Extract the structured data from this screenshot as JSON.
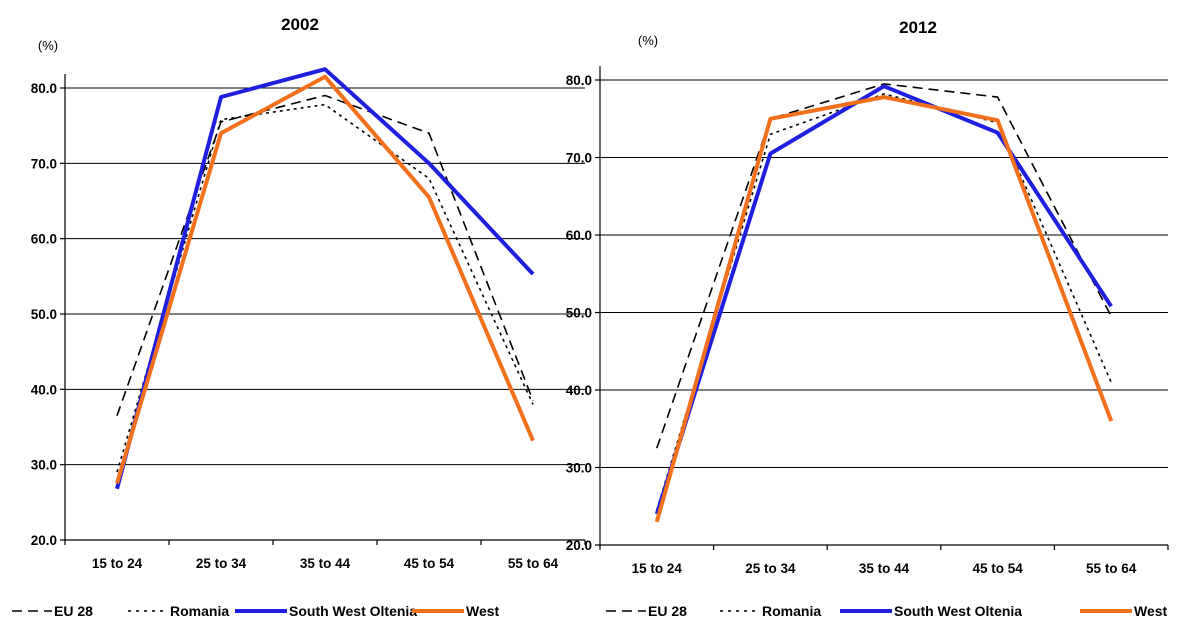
{
  "chart_data": [
    {
      "type": "line",
      "title": "2002",
      "ylabel": "(%)",
      "xlabel": "",
      "categories": [
        "15 to 24",
        "25 to 34",
        "35 to 44",
        "45 to 54",
        "55 to 64"
      ],
      "ylim": [
        20,
        85
      ],
      "yticks": [
        "20.0",
        "30.0",
        "40.0",
        "50.0",
        "60.0",
        "70.0",
        "80.0"
      ],
      "grid": true,
      "legend": "bottom",
      "series": [
        {
          "name": "EU 28",
          "style": "dashed",
          "color": "#000000",
          "values": [
            36.5,
            75.5,
            79.0,
            74.0,
            38.5
          ]
        },
        {
          "name": "Romania",
          "style": "dotted",
          "color": "#000000",
          "values": [
            29.0,
            75.8,
            77.8,
            68.0,
            38.0
          ]
        },
        {
          "name": "South West Oltenia",
          "style": "solid",
          "color": "#1f1fe0",
          "values": [
            26.8,
            78.8,
            82.5,
            70.0,
            55.3
          ]
        },
        {
          "name": "West",
          "style": "solid",
          "color": "#f26f1b",
          "values": [
            27.5,
            74.0,
            81.5,
            65.5,
            33.2
          ]
        }
      ]
    },
    {
      "type": "line",
      "title": "2012",
      "ylabel": "(%)",
      "xlabel": "",
      "categories": [
        "15 to 24",
        "25 to 34",
        "35 to 44",
        "45 to 54",
        "55 to 64"
      ],
      "ylim": [
        20,
        85
      ],
      "yticks": [
        "20.0",
        "30.0",
        "40.0",
        "50.0",
        "60.0",
        "70.0",
        "80.0"
      ],
      "grid": true,
      "legend": "bottom",
      "series": [
        {
          "name": "EU 28",
          "style": "dashed",
          "color": "#000000",
          "values": [
            32.5,
            75.0,
            79.5,
            77.8,
            49.5
          ]
        },
        {
          "name": "Romania",
          "style": "dotted",
          "color": "#000000",
          "values": [
            24.5,
            73.0,
            78.2,
            74.5,
            41.0
          ]
        },
        {
          "name": "South West Oltenia",
          "style": "solid",
          "color": "#1f1fe0",
          "values": [
            24.0,
            70.5,
            79.2,
            73.2,
            50.8
          ]
        },
        {
          "name": "West",
          "style": "solid",
          "color": "#f26f1b",
          "values": [
            23.0,
            75.0,
            77.8,
            74.8,
            36.0
          ]
        }
      ]
    }
  ]
}
